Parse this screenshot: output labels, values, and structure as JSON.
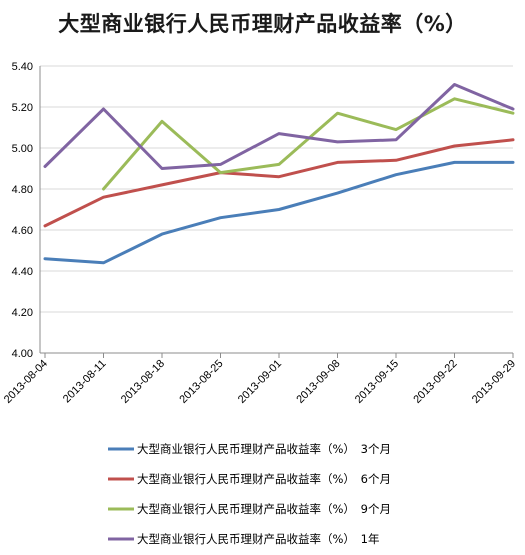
{
  "chart_data": {
    "type": "line",
    "title": "大型商业银行人民币理财产品收益率（%）",
    "xlabel": "",
    "ylabel": "",
    "ylim": [
      4.0,
      5.4
    ],
    "yticks": [
      "4.00",
      "4.20",
      "4.40",
      "4.60",
      "4.80",
      "5.00",
      "5.20",
      "5.40"
    ],
    "grid": "horizontal",
    "legend_position": "bottom",
    "categories": [
      "2013-08-04",
      "2013-08-11",
      "2013-08-18",
      "2013-08-25",
      "2013-09-01",
      "2013-09-08",
      "2013-09-15",
      "2013-09-22",
      "2013-09-29"
    ],
    "series": [
      {
        "name": "大型商业银行人民币理财产品收益率（%）　3个月",
        "color": "#4a7eb8",
        "values": [
          4.46,
          4.44,
          4.58,
          4.66,
          4.7,
          4.78,
          4.87,
          4.93,
          4.93
        ]
      },
      {
        "name": "大型商业银行人民币理财产品收益率（%）　6个月",
        "color": "#c0504d",
        "values": [
          4.62,
          4.76,
          4.82,
          4.88,
          4.86,
          4.93,
          4.94,
          5.01,
          5.04
        ]
      },
      {
        "name": "大型商业银行人民币理财产品收益率（%）　9个月",
        "color": "#9bbb59",
        "values": [
          null,
          4.8,
          5.13,
          4.88,
          4.92,
          5.17,
          5.09,
          5.24,
          5.17
        ]
      },
      {
        "name": "大型商业银行人民币理财产品收益率（%）　1年",
        "color": "#8064a2",
        "values": [
          4.91,
          5.19,
          4.9,
          4.92,
          5.07,
          5.03,
          5.04,
          5.31,
          5.19
        ]
      }
    ]
  }
}
